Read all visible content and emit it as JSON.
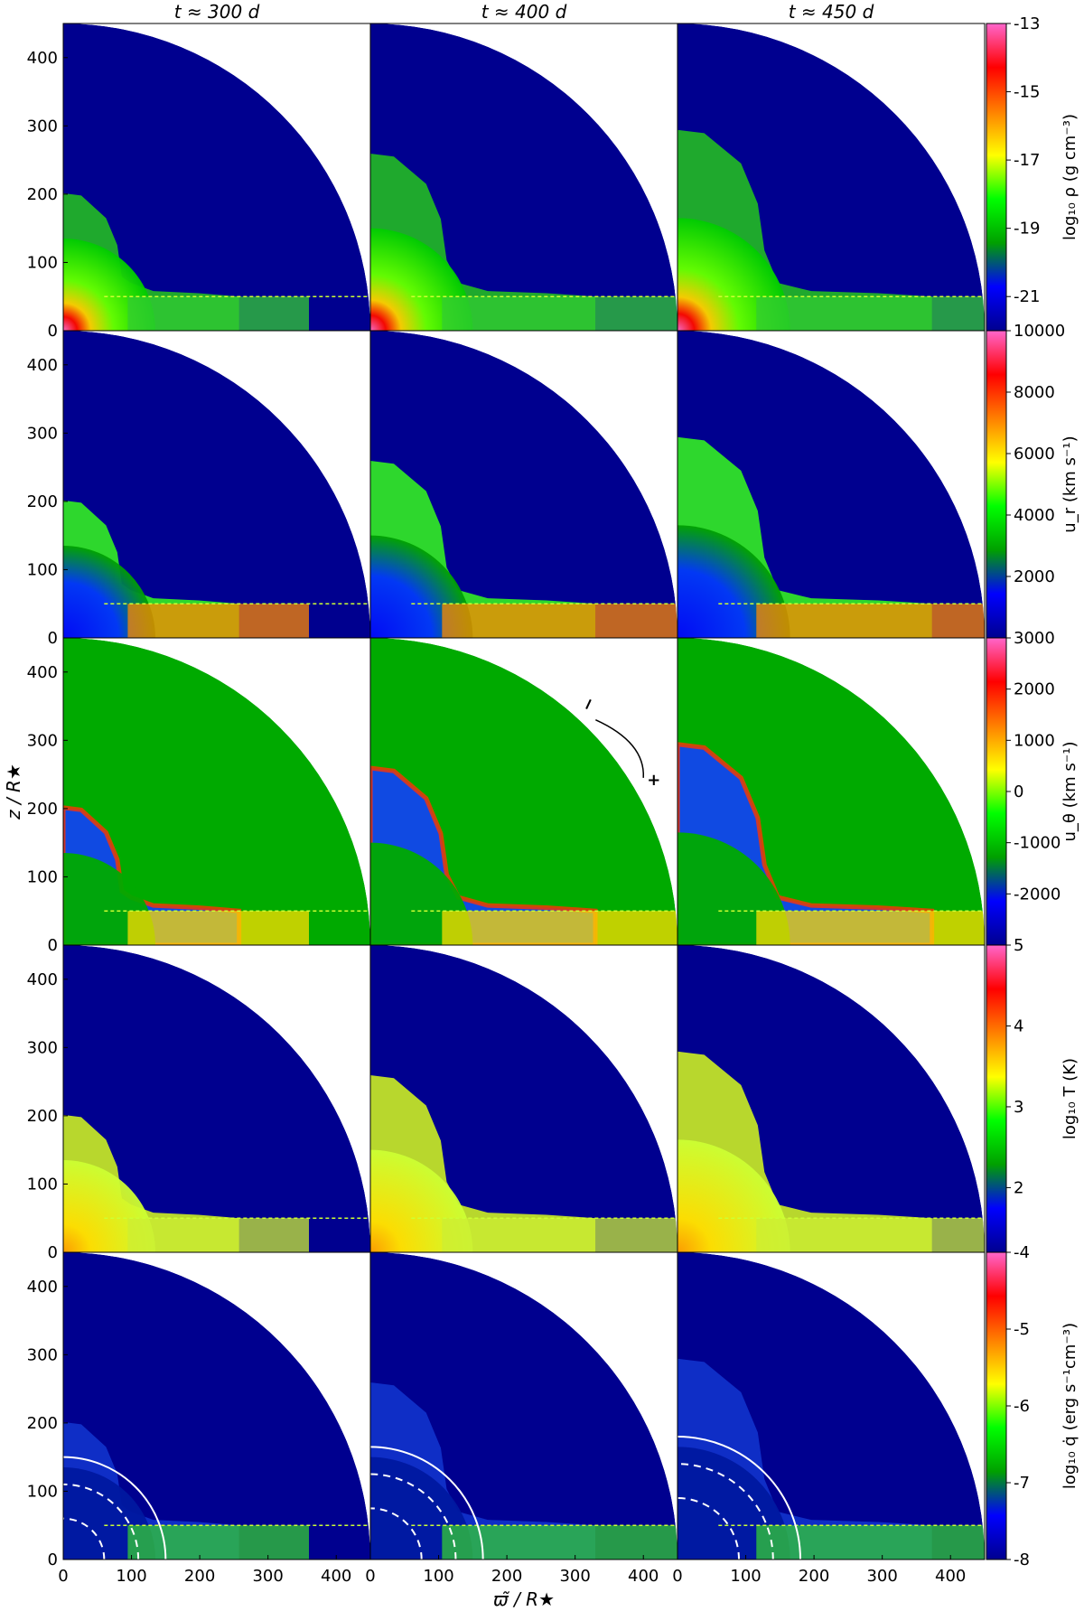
{
  "chart_data": {
    "type": "heatmap",
    "columns": [
      {
        "time_label": "t ≈ 300 d"
      },
      {
        "time_label": "t ≈ 400 d"
      },
      {
        "time_label": "t ≈ 450 d"
      }
    ],
    "xlabel": "ϖ̃ / R★",
    "ylabel": "z / R★",
    "xlim": [
      0,
      450
    ],
    "ylim": [
      0,
      450
    ],
    "x_ticks": [
      "0",
      "100",
      "200",
      "300",
      "400"
    ],
    "y_ticks": [
      "0",
      "100",
      "200",
      "300",
      "400"
    ],
    "x_tick_values": [
      0,
      100,
      200,
      300,
      400
    ],
    "y_tick_values": [
      0,
      100,
      200,
      300,
      400
    ],
    "domain_radius": 450,
    "disk_height": 50,
    "rows": [
      {
        "quantity": "rho",
        "colorbar_label": "log₁₀ ρ (g cm⁻³)",
        "range": [
          -22,
          -13
        ],
        "ticks": [
          "-13",
          "-15",
          "-17",
          "-19",
          "-21"
        ],
        "tick_values": [
          -13,
          -15,
          -17,
          -19,
          -21
        ]
      },
      {
        "quantity": "u_r",
        "colorbar_label": "u_r (km s⁻¹)",
        "range": [
          0,
          10000
        ],
        "ticks": [
          "10000",
          "8000",
          "6000",
          "4000",
          "2000"
        ],
        "tick_values": [
          10000,
          8000,
          6000,
          4000,
          2000
        ]
      },
      {
        "quantity": "u_theta",
        "colorbar_label": "u_θ (km s⁻¹)",
        "range": [
          -3000,
          3000
        ],
        "ticks": [
          "3000",
          "2000",
          "1000",
          "0",
          "-1000",
          "-2000"
        ],
        "tick_values": [
          3000,
          2000,
          1000,
          0,
          -1000,
          -2000
        ]
      },
      {
        "quantity": "T",
        "colorbar_label": "log₁₀ T (K)",
        "range": [
          1.2,
          5
        ],
        "ticks": [
          "5",
          "4",
          "3",
          "2"
        ],
        "tick_values": [
          5,
          4,
          3,
          2
        ]
      },
      {
        "quantity": "qdot",
        "colorbar_label": "log₁₀ q̇ (erg s⁻¹cm⁻³)",
        "range": [
          -8,
          -4
        ],
        "ticks": [
          "-4",
          "-5",
          "-6",
          "-7",
          "-8"
        ],
        "tick_values": [
          -4,
          -5,
          -6,
          -7,
          -8
        ]
      }
    ],
    "annotations": [
      {
        "panel_row": 2,
        "panel_col": 1,
        "minus_label": "−",
        "plus_label": "+"
      }
    ]
  },
  "colors": {
    "background_blue": "#00008f",
    "colormap": [
      "#00008f",
      "#0000ff",
      "#00a000",
      "#00ff00",
      "#ffff00",
      "#ff8000",
      "#ff0000",
      "#ff66cc"
    ]
  }
}
